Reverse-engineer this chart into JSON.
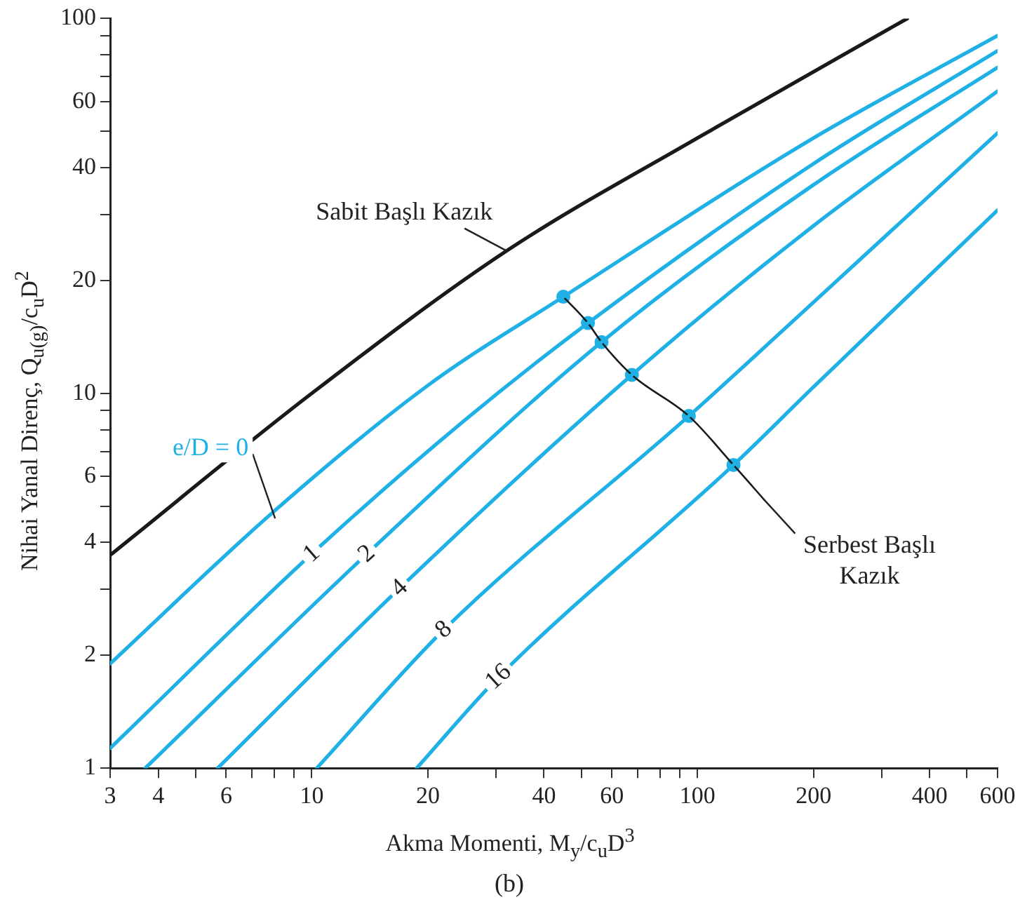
{
  "chart_data": {
    "type": "line",
    "xlabel": "Akma Momenti, M$_{y}$/c$_{u}$D$^{3}$",
    "ylabel": "Nihai Yanal Direnç, Q$_{u(g)}$/c$_{u}$D$^{2}$",
    "log": "xy",
    "xlim": [
      3,
      600
    ],
    "ylim": [
      1,
      100
    ],
    "xticks": [
      3,
      4,
      {
        "value": 5,
        "label": null
      },
      6,
      {
        "value": 7,
        "label": null
      },
      {
        "value": 8,
        "label": null
      },
      {
        "value": 9,
        "label": null
      },
      10,
      20,
      {
        "value": 30,
        "label": null
      },
      40,
      {
        "value": 50,
        "label": null
      },
      60,
      {
        "value": 70,
        "label": null
      },
      {
        "value": 80,
        "label": null
      },
      {
        "value": 90,
        "label": null
      },
      100,
      200,
      {
        "value": 300,
        "label": null
      },
      400,
      {
        "value": 500,
        "label": null
      },
      600
    ],
    "yticks": [
      1,
      2,
      {
        "value": 3,
        "label": null
      },
      4,
      {
        "value": 5,
        "label": null
      },
      6,
      {
        "value": 7,
        "label": null
      },
      {
        "value": 8,
        "label": null
      },
      {
        "value": 9,
        "label": null
      },
      10,
      20,
      {
        "value": 30,
        "label": null
      },
      40,
      {
        "value": 50,
        "label": null
      },
      60,
      {
        "value": 70,
        "label": null
      },
      {
        "value": 80,
        "label": null
      },
      {
        "value": 90,
        "label": null
      },
      100
    ],
    "grid": false,
    "legend": false,
    "marker": "none",
    "line_style": "solid",
    "series": [
      {
        "color": "#1a1a1a",
        "x": [
          3,
          10,
          32,
          100,
          350
        ],
        "values": [
          3.7,
          10,
          24,
          48,
          100
        ]
      },
      {
        "name": "e/D = 0",
        "color": "#1fb1e6",
        "x": [
          3,
          7.9,
          20,
          44.9,
          200,
          600
        ],
        "values": [
          1.9,
          4.8,
          10.5,
          18.1,
          48,
          90
        ]
      },
      {
        "name": "1",
        "color": "#1fb1e6",
        "x": [
          3,
          10,
          25,
          52,
          200,
          600
        ],
        "values": [
          1.13,
          3.73,
          8.5,
          15.4,
          41,
          82
        ]
      },
      {
        "name": "2",
        "color": "#1fb1e6",
        "x": [
          3.7,
          13.9,
          56.4,
          200,
          600
        ],
        "values": [
          1,
          3.73,
          13.7,
          36,
          74
        ]
      },
      {
        "name": "4",
        "color": "#1fb1e6",
        "x": [
          5.7,
          16.9,
          67.6,
          200,
          600
        ],
        "values": [
          1,
          3.02,
          11.2,
          28,
          64
        ]
      },
      {
        "name": "8",
        "color": "#1fb1e6",
        "x": [
          10.3,
          22,
          95,
          200,
          600
        ],
        "values": [
          1,
          2.34,
          8.7,
          17.5,
          49.5
        ]
      },
      {
        "name": "16",
        "color": "#1fb1e6",
        "x": [
          18.7,
          30.5,
          124,
          200,
          600
        ],
        "values": [
          1,
          1.75,
          6.44,
          10.4,
          30.8
        ]
      },
      {
        "type": "line",
        "color": "#1a1a1a",
        "x": [
          44.9,
          52,
          56.4,
          67.6,
          95,
          124,
          149
        ],
        "values": [
          18.1,
          15.4,
          13.7,
          11.2,
          8.7,
          6.44,
          5.2
        ]
      },
      {
        "type": "scatter",
        "marker": "circle",
        "color": "#1fb1e6",
        "x": [
          44.9,
          52,
          56.4,
          67.6,
          95,
          124
        ],
        "values": [
          18.1,
          15.4,
          13.7,
          11.2,
          8.7,
          6.44
        ]
      }
    ],
    "annotations": [
      {
        "text": "Sabit Başlı Kazık",
        "x": 32,
        "y": 24
      },
      {
        "text": "Serbest Başlı Kazık",
        "x": 149,
        "y": 5.2
      },
      "(b)"
    ]
  }
}
